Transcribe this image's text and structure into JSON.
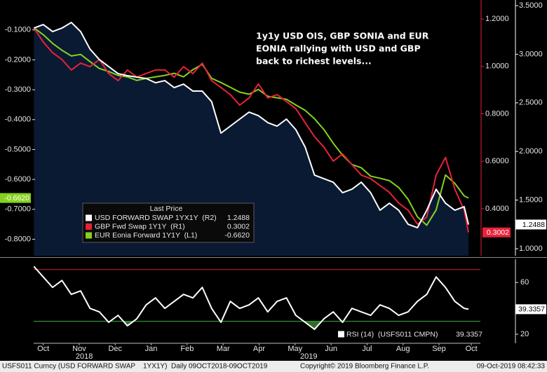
{
  "chart_data": [
    {
      "type": "line",
      "annotation": [
        "1y1y USD OIS, GBP SONIA and EUR",
        "EONIA rallying with USD and GBP",
        "back to richest levels..."
      ],
      "legend_title": "Last Price",
      "x": [
        0.24,
        0.5,
        0.76,
        1.02,
        1.28,
        1.54,
        1.8,
        2.06,
        2.32,
        2.58,
        2.84,
        3.1,
        3.36,
        3.62,
        3.88,
        4.14,
        4.4,
        4.66,
        4.92,
        5.18,
        5.44,
        5.7,
        5.96,
        6.22,
        6.48,
        6.74,
        7.0,
        7.26,
        7.52,
        7.78,
        8.04,
        8.3,
        8.56,
        8.82,
        9.08,
        9.34,
        9.6,
        9.86,
        10.12,
        10.38,
        10.64,
        10.9,
        11.16,
        11.42,
        11.68,
        11.94,
        12.2,
        12.32
      ],
      "xlim": [
        0.234,
        12.65
      ],
      "xticks": [
        {
          "value": 0.5,
          "label": "Oct"
        },
        {
          "value": 1.5,
          "label": "Nov"
        },
        {
          "value": 2.5,
          "label": "Dec"
        },
        {
          "value": 3.5,
          "label": "Jan"
        },
        {
          "value": 4.5,
          "label": "Feb"
        },
        {
          "value": 5.5,
          "label": "Mar"
        },
        {
          "value": 6.5,
          "label": "Apr"
        },
        {
          "value": 7.5,
          "label": "May"
        },
        {
          "value": 8.5,
          "label": "Jun"
        },
        {
          "value": 9.5,
          "label": "Jul"
        },
        {
          "value": 10.5,
          "label": "Aug"
        },
        {
          "value": 11.5,
          "label": "Sep"
        },
        {
          "value": 12.4,
          "label": "Oct"
        }
      ],
      "year_labels": [
        {
          "value": 1.64,
          "label": "2018"
        },
        {
          "value": 7.88,
          "label": "2019"
        }
      ],
      "ylim": [
        -0.855,
        0.0
      ],
      "yticks": [
        {
          "value": -0.8,
          "label": "-0.8000"
        },
        {
          "value": -0.7,
          "label": "-0.7000"
        },
        {
          "value": -0.6,
          "label": "-0.6000"
        },
        {
          "value": -0.5,
          "label": "-0.5000"
        },
        {
          "value": -0.4,
          "label": "-0.4000"
        },
        {
          "value": -0.3,
          "label": "-0.3000"
        },
        {
          "value": -0.2,
          "label": "-0.2000"
        },
        {
          "value": -0.1,
          "label": "-0.1000"
        }
      ],
      "y2lim": [
        0.202,
        1.28
      ],
      "y2ticks": [
        {
          "value": 0.4,
          "label": "0.4000"
        },
        {
          "value": 0.6,
          "label": "0.6000"
        },
        {
          "value": 0.8,
          "label": "0.8000"
        },
        {
          "value": 1.0,
          "label": "1.0000"
        },
        {
          "value": 1.2,
          "label": "1.2000"
        }
      ],
      "y2color": "#e8213a",
      "y3lim": [
        0.928,
        3.558
      ],
      "y3ticks": [
        {
          "value": 1.0,
          "label": "1.0000"
        },
        {
          "value": 1.5,
          "label": "1.5000"
        },
        {
          "value": 2.0,
          "label": "2.0000"
        },
        {
          "value": 2.5,
          "label": "2.5000"
        },
        {
          "value": 3.0,
          "label": "3.0000"
        },
        {
          "value": 3.5,
          "label": "3.5000"
        }
      ],
      "y3color": "#ffffff",
      "series": [
        {
          "name": "USD FORWARD SWAP 1YX1Y  (R2)",
          "color": "#ffffff",
          "fill": "#0b1a33",
          "axis": "y3",
          "last_value_label": "1.2488",
          "values": [
            3.269,
            3.305,
            3.233,
            3.269,
            3.327,
            3.233,
            3.053,
            2.945,
            2.873,
            2.801,
            2.78,
            2.765,
            2.751,
            2.707,
            2.729,
            2.657,
            2.693,
            2.621,
            2.621,
            2.513,
            2.189,
            2.261,
            2.333,
            2.405,
            2.369,
            2.297,
            2.261,
            2.333,
            2.225,
            2.045,
            1.757,
            1.72,
            1.684,
            1.576,
            1.612,
            1.684,
            1.576,
            1.396,
            1.468,
            1.396,
            1.252,
            1.216,
            1.396,
            1.612,
            1.468,
            1.396,
            1.432,
            1.2488
          ]
        },
        {
          "name": "GBP Fwd Swap 1Y1Y  (R1)",
          "color": "#e8213a",
          "axis": "y2",
          "last_value_label": "0.3002",
          "values": [
            1.162,
            1.103,
            1.058,
            1.029,
            0.985,
            1.014,
            0.999,
            1.029,
            0.97,
            0.94,
            0.985,
            0.955,
            0.97,
            0.985,
            0.985,
            0.955,
            0.999,
            0.97,
            1.014,
            0.94,
            0.911,
            0.881,
            0.837,
            0.867,
            0.926,
            0.867,
            0.881,
            0.852,
            0.822,
            0.763,
            0.704,
            0.66,
            0.601,
            0.631,
            0.586,
            0.542,
            0.527,
            0.498,
            0.469,
            0.424,
            0.394,
            0.335,
            0.365,
            0.542,
            0.616,
            0.483,
            0.394,
            0.3002
          ]
        },
        {
          "name": "EUR Eonia Forward 1Y1Y  (L1)",
          "color": "#86d11f",
          "axis": "y",
          "last_value_label": "-0.6620",
          "values": [
            -0.093,
            -0.116,
            -0.145,
            -0.168,
            -0.187,
            -0.182,
            -0.206,
            -0.229,
            -0.239,
            -0.252,
            -0.257,
            -0.269,
            -0.262,
            -0.257,
            -0.252,
            -0.245,
            -0.257,
            -0.233,
            -0.215,
            -0.262,
            -0.276,
            -0.292,
            -0.308,
            -0.315,
            -0.299,
            -0.322,
            -0.327,
            -0.332,
            -0.351,
            -0.369,
            -0.397,
            -0.433,
            -0.479,
            -0.519,
            -0.55,
            -0.561,
            -0.589,
            -0.596,
            -0.604,
            -0.627,
            -0.666,
            -0.725,
            -0.753,
            -0.702,
            -0.585,
            -0.613,
            -0.655,
            -0.662
          ]
        }
      ]
    },
    {
      "type": "line",
      "x": [
        0.24,
        0.5,
        0.76,
        1.02,
        1.28,
        1.54,
        1.8,
        2.06,
        2.32,
        2.58,
        2.84,
        3.1,
        3.36,
        3.62,
        3.88,
        4.14,
        4.4,
        4.66,
        4.92,
        5.18,
        5.44,
        5.7,
        5.96,
        6.22,
        6.48,
        6.74,
        7.0,
        7.26,
        7.52,
        7.78,
        8.04,
        8.3,
        8.56,
        8.82,
        9.08,
        9.34,
        9.6,
        9.86,
        10.12,
        10.38,
        10.64,
        10.9,
        11.16,
        11.42,
        11.68,
        11.94,
        12.2,
        12.32
      ],
      "xlim": [
        0.234,
        12.65
      ],
      "ylim": [
        13,
        78
      ],
      "yticks": [
        20,
        60
      ],
      "levels": [
        {
          "value": 70,
          "color": "#d9262e"
        },
        {
          "value": 30,
          "color": "#3cb043",
          "fill_below": "#2f6a28"
        }
      ],
      "series": [
        {
          "name": "RSI (14)  (USFS011 CMPN)",
          "color": "#ffffff",
          "last_value_label": "39.3357",
          "values": [
            72.4,
            64.3,
            56.2,
            61.6,
            50.8,
            53.5,
            40.0,
            37.3,
            29.2,
            34.6,
            26.5,
            31.9,
            42.7,
            48.1,
            40.0,
            45.4,
            50.8,
            48.1,
            56.2,
            40.0,
            29.2,
            45.4,
            40.0,
            42.7,
            48.1,
            37.3,
            45.4,
            48.1,
            34.6,
            29.2,
            23.8,
            31.9,
            37.3,
            29.2,
            40.0,
            37.3,
            34.6,
            42.7,
            40.0,
            34.6,
            37.3,
            45.4,
            50.8,
            64.3,
            56.2,
            45.4,
            40.0,
            39.3357
          ]
        }
      ]
    }
  ],
  "footer": {
    "left": "USFS011 Curncy (USD FORWARD SWAP    1YX1Y)  Daily 09OCT2018-09OCT2019",
    "center": "Copyright© 2019 Bloomberg Finance L.P.",
    "right": "09-Oct-2019 08:42:33"
  }
}
